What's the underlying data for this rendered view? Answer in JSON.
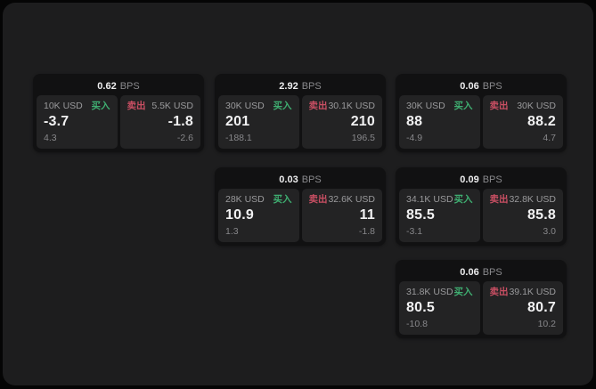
{
  "labels": {
    "bps_suffix": "BPS",
    "buy_label": "买入",
    "sell_label": "卖出"
  },
  "colors": {
    "background": "#050505",
    "panel_background": "#1d1d1e",
    "card_background": "#111112",
    "tile_background": "#232324",
    "buy_green": "#3fae71",
    "sell_red": "#c94f63",
    "text_primary": "#f1f1f2",
    "text_muted": "#9a9a9c"
  },
  "cards": [
    {
      "bps": "0.62",
      "buy": {
        "amount": "10K USD",
        "price": "-3.7",
        "delta": "4.3"
      },
      "sell": {
        "amount": "5.5K USD",
        "price": "-1.8",
        "delta": "-2.6"
      }
    },
    {
      "bps": "2.92",
      "buy": {
        "amount": "30K USD",
        "price": "201",
        "delta": "-188.1"
      },
      "sell": {
        "amount": "30.1K USD",
        "price": "210",
        "delta": "196.5"
      }
    },
    {
      "bps": "0.06",
      "buy": {
        "amount": "30K USD",
        "price": "88",
        "delta": "-4.9"
      },
      "sell": {
        "amount": "30K USD",
        "price": "88.2",
        "delta": "4.7"
      }
    },
    {
      "bps": "0.03",
      "buy": {
        "amount": "28K USD",
        "price": "10.9",
        "delta": "1.3"
      },
      "sell": {
        "amount": "32.6K USD",
        "price": "11",
        "delta": "-1.8"
      }
    },
    {
      "bps": "0.09",
      "buy": {
        "amount": "34.1K USD",
        "price": "85.5",
        "delta": "-3.1"
      },
      "sell": {
        "amount": "32.8K USD",
        "price": "85.8",
        "delta": "3.0"
      }
    },
    {
      "bps": "0.06",
      "buy": {
        "amount": "31.8K USD",
        "price": "80.5",
        "delta": "-10.8"
      },
      "sell": {
        "amount": "39.1K USD",
        "price": "80.7",
        "delta": "10.2"
      }
    }
  ]
}
